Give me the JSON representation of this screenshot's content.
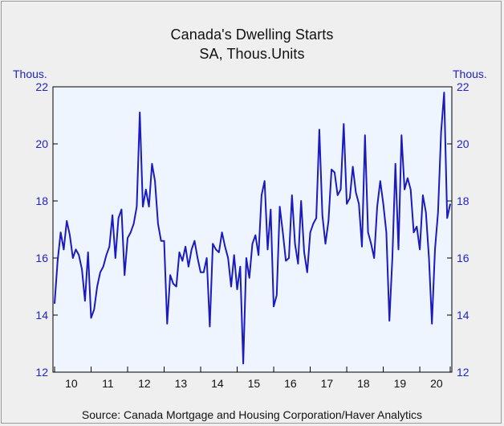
{
  "chart_data": {
    "type": "line",
    "title": "Canada's Dwelling Starts",
    "subtitle": "SA, Thous.Units",
    "ylabel_left": "Thous.",
    "ylabel_right": "Thous.",
    "ylim": [
      12,
      22
    ],
    "yticks": [
      12,
      14,
      16,
      18,
      20,
      22
    ],
    "xlabels": [
      "10",
      "11",
      "12",
      "13",
      "14",
      "15",
      "16",
      "17",
      "18",
      "19",
      "20"
    ],
    "xrange": [
      "2010-01",
      "2020-08"
    ],
    "grid": false,
    "source": "Source:  Canada Mortgage and Housing Corporation/Haver Analytics",
    "colors": {
      "line": "#1a1abf",
      "plot_bg": "#eef5ff",
      "axis_text": "#1f23c8"
    },
    "series": [
      {
        "values": [
          14.4,
          15.9,
          16.9,
          16.3,
          17.3,
          16.8,
          16.0,
          16.3,
          16.1,
          15.6,
          14.5,
          16.2,
          13.9,
          14.2,
          15.0,
          15.5,
          15.7,
          16.1,
          16.4,
          17.5,
          16.0,
          17.4,
          17.7,
          15.4,
          16.7,
          16.9,
          17.2,
          17.8,
          21.1,
          17.8,
          18.4,
          17.8,
          19.3,
          18.7,
          17.2,
          16.6,
          16.6,
          13.7,
          15.4,
          15.1,
          15.0,
          16.2,
          15.9,
          16.4,
          15.7,
          16.3,
          16.6,
          16.0,
          15.5,
          15.5,
          16.0,
          13.6,
          16.5,
          16.3,
          16.2,
          16.9,
          16.4,
          16.0,
          15.0,
          16.1,
          14.9,
          15.7,
          12.3,
          16.0,
          15.3,
          16.5,
          16.8,
          16.1,
          18.2,
          18.7,
          16.3,
          17.7,
          14.3,
          14.7,
          17.8,
          16.9,
          15.9,
          16.0,
          18.2,
          16.5,
          15.8,
          18.0,
          16.2,
          15.5,
          16.9,
          17.2,
          17.4,
          20.5,
          17.5,
          16.5,
          17.3,
          19.1,
          19.0,
          18.2,
          18.4,
          20.7,
          17.9,
          18.1,
          19.2,
          18.3,
          17.9,
          16.4,
          20.3,
          16.9,
          16.5,
          16.0,
          17.8,
          18.7,
          17.9,
          16.9,
          13.8,
          16.0,
          19.3,
          16.3,
          20.3,
          18.4,
          18.8,
          18.4,
          16.9,
          17.1,
          16.3,
          18.2,
          17.6,
          16.0,
          13.7,
          16.3,
          17.6,
          20.4,
          21.8,
          17.4,
          17.9
        ]
      }
    ]
  }
}
